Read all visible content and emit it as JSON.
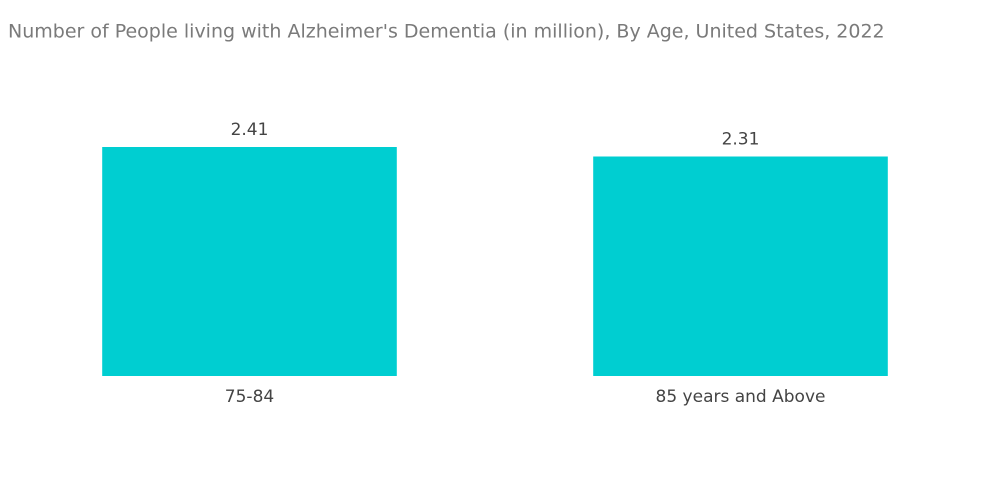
{
  "chart_data": {
    "type": "bar",
    "title": "Number of People living with Alzheimer's Dementia (in million), By Age, United States, 2022",
    "categories": [
      "75-84",
      "85 years and Above"
    ],
    "values": [
      2.41,
      2.31
    ],
    "color": "#00ced1"
  }
}
